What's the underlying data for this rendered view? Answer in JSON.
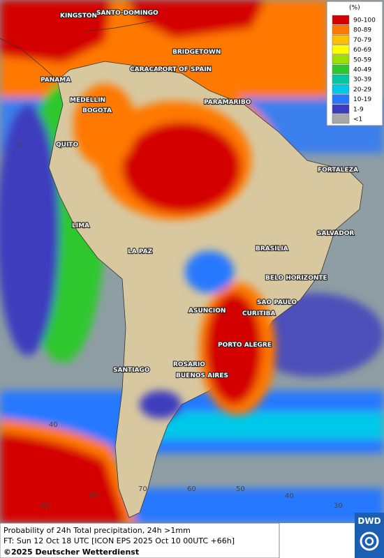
{
  "map": {
    "cities": [
      "KINGSTON",
      "SANTO-DOMINGO",
      "BRIDGETOWN",
      "CARACAS",
      "PORT OF SPAIN",
      "PANAMA",
      "MEDELLIN",
      "BOGOTA",
      "PARAMARIBO",
      "QUITO",
      "FORTALEZA",
      "LIMA",
      "SALVADOR",
      "BRASILIA",
      "LA PAZ",
      "BELO HORIZONTE",
      "SAO PAULO",
      "ASUNCION",
      "CURITIBA",
      "PORTO ALEGRE",
      "ROSARIO",
      "BUENOS AIRES",
      "SANTIAGO"
    ],
    "grid_labels": [
      0,
      40,
      80,
      60,
      70,
      60,
      50,
      40,
      30
    ]
  },
  "legend": {
    "title": "(%)",
    "items": [
      {
        "label": "90-100",
        "color": "#d40000"
      },
      {
        "label": "80-89",
        "color": "#ff7800"
      },
      {
        "label": "70-79",
        "color": "#ffc000"
      },
      {
        "label": "60-69",
        "color": "#ffff00"
      },
      {
        "label": "50-59",
        "color": "#9be100"
      },
      {
        "label": "40-49",
        "color": "#2ec82e"
      },
      {
        "label": "30-39",
        "color": "#00c8a0"
      },
      {
        "label": "20-29",
        "color": "#00c8e8"
      },
      {
        "label": "10-19",
        "color": "#2878ff"
      },
      {
        "label": "1-9",
        "color": "#3c3cbe"
      },
      {
        "label": "<1",
        "color": "#a8a8a8"
      }
    ]
  },
  "footer": {
    "line1": "Probability of 24h Total precipitation, 24h >1mm",
    "line2": "FT: Sun 12 Oct 18 UTC [ICON EPS 2025 Oct 10 00UTC +66h]",
    "line3": "©2025 Deutscher Wetterdienst",
    "logo": "DWD"
  }
}
